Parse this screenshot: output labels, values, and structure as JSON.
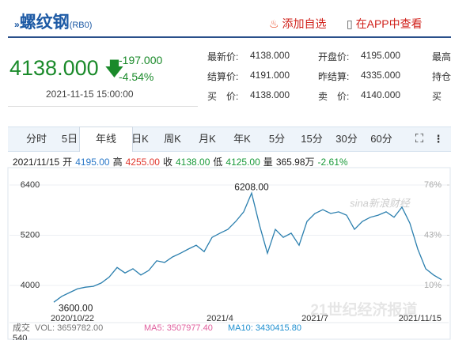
{
  "header": {
    "name": "螺纹钢",
    "code": "(RB0)",
    "add_watch": "添加自选",
    "open_app": "在APP中查看"
  },
  "quote": {
    "price": "4138.000",
    "change": "-197.000",
    "change_pct": "-4.54%",
    "time": "2021-11-15 15:00:00"
  },
  "fields": [
    [
      "最新价:",
      "4138.000",
      "开盘价:",
      "4195.000",
      "最高"
    ],
    [
      "结算价:",
      "4191.000",
      "昨结算:",
      "4335.000",
      "持仓"
    ],
    [
      "买　价:",
      "4138.000",
      "卖　价:",
      "4140.000",
      "买"
    ]
  ],
  "tabs": [
    "分时",
    "5日",
    "年线",
    "日K",
    "周K",
    "月K",
    "年K",
    "5分",
    "15分",
    "30分",
    "60分"
  ],
  "active_tab": "年线",
  "info_bar": [
    {
      "text": "2021/11/15",
      "color": "#222"
    },
    {
      "text": "开",
      "color": "#222"
    },
    {
      "text": "4195.00",
      "color": "#2a78c8"
    },
    {
      "text": "高",
      "color": "#222"
    },
    {
      "text": "4255.00",
      "color": "#e0362c"
    },
    {
      "text": "收",
      "color": "#222"
    },
    {
      "text": "4138.00",
      "color": "#1a9a3a"
    },
    {
      "text": "低",
      "color": "#222"
    },
    {
      "text": "4125.00",
      "color": "#1a9a3a"
    },
    {
      "text": "量",
      "color": "#222"
    },
    {
      "text": "365.98万",
      "color": "#222"
    },
    {
      "text": "-2.61%",
      "color": "#1a9a3a"
    }
  ],
  "watermarks": [
    "sina新浪财经",
    "21世纪经济报道"
  ],
  "chart_data": {
    "type": "line",
    "categories": [
      "2020/10/22",
      null,
      null,
      null,
      null,
      null,
      null,
      null,
      null,
      null,
      null,
      null,
      null,
      null,
      null,
      null,
      null,
      null,
      null,
      null,
      null,
      "2021/4",
      null,
      null,
      null,
      null,
      null,
      null,
      null,
      null,
      null,
      null,
      null,
      "2021/7",
      null,
      null,
      null,
      null,
      null,
      null,
      null,
      null,
      null,
      null,
      null,
      null,
      null,
      null,
      null,
      "2021/11/15"
    ],
    "series": [
      {
        "name": "螺纹钢",
        "color": "#2b7fae",
        "values": [
          3600,
          3740,
          3830,
          3920,
          3960,
          3980,
          4060,
          4200,
          4430,
          4300,
          4400,
          4250,
          4360,
          4590,
          4550,
          4680,
          4770,
          4870,
          4960,
          4810,
          5150,
          5250,
          5340,
          5530,
          5760,
          6208,
          5440,
          4770,
          5340,
          5150,
          5250,
          4960,
          5530,
          5720,
          5810,
          5720,
          5760,
          5680,
          5340,
          5530,
          5630,
          5680,
          5760,
          5630,
          5870,
          5490,
          4870,
          4400,
          4250,
          4138
        ],
        "value_labels": [
          "3600.00",
          null,
          null,
          null,
          null,
          null,
          null,
          null,
          null,
          null,
          null,
          null,
          null,
          null,
          null,
          null,
          null,
          null,
          null,
          null,
          null,
          null,
          null,
          null,
          null,
          "6208.00",
          null,
          null,
          null,
          null,
          null,
          null,
          null,
          null,
          null,
          null,
          null,
          null,
          null,
          null,
          null,
          null,
          null,
          null,
          null,
          null,
          null,
          null,
          null,
          null
        ]
      }
    ],
    "ylim": [
      3500,
      6500
    ],
    "yticks": [
      4000,
      5200,
      6400
    ],
    "y2lim": [
      -3.75,
      78.75
    ],
    "y2ticks": [
      {
        "value": 10,
        "label": "10%"
      },
      {
        "value": 43,
        "label": "43%"
      },
      {
        "value": 76,
        "label": "76%"
      }
    ],
    "volume_bar": [
      {
        "text": "成交",
        "color": "#666"
      },
      {
        "text": "VOL: 3659782.00",
        "color": "#777"
      },
      {
        "text": "MA5: 3507977.40",
        "color": "#e0609e"
      },
      {
        "text": "MA10: 3430415.80",
        "color": "#2090d0"
      }
    ],
    "volume_tick": "540"
  }
}
